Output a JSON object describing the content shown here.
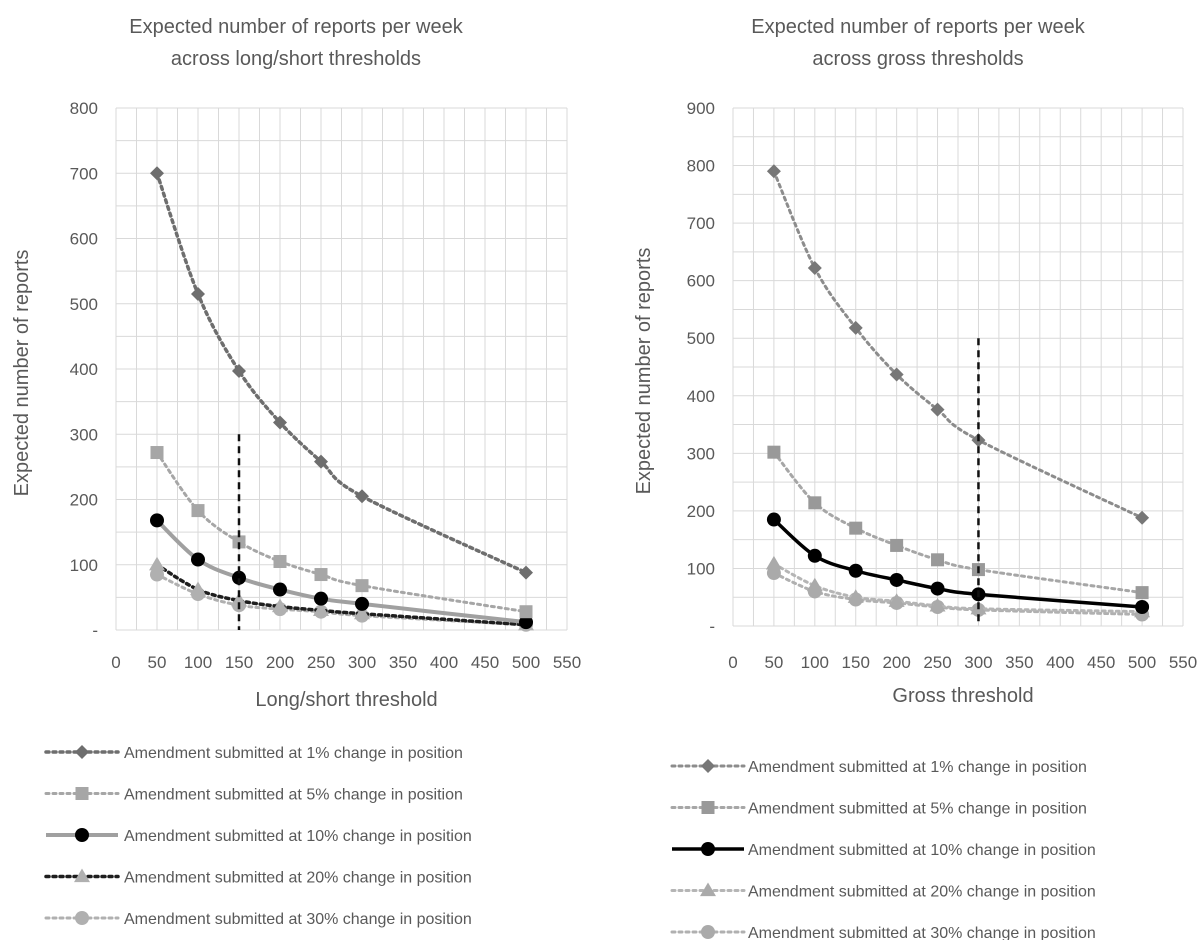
{
  "colors": {
    "s1_left": "#6e6e6e",
    "s1_right": "#8c8c8c",
    "s5": "#a6a6a6",
    "s10_left": "#a0a0a0",
    "s10_right": "#000000",
    "s20_left": "#1e1e1e",
    "s20_right": "#b5b5b5",
    "s30": "#b0b0b0",
    "grid": "#d9d9d9",
    "threshold": "#111111"
  },
  "chart_data": [
    {
      "type": "line",
      "title": [
        "Expected number of reports per week",
        "across long/short thresholds"
      ],
      "xlabel": "Long/short threshold",
      "ylabel": "Expected number of reports",
      "xlim": [
        0,
        550
      ],
      "ylim": [
        0,
        800
      ],
      "x_ticks": [
        "0",
        "50",
        "100",
        "150",
        "200",
        "250",
        "300",
        "350",
        "400",
        "450",
        "500",
        "550"
      ],
      "y_ticks": [
        "-",
        "100",
        "200",
        "300",
        "400",
        "500",
        "600",
        "700",
        "800"
      ],
      "grid": true,
      "threshold_line": {
        "x": 150,
        "y_top": 300
      },
      "x": [
        50,
        100,
        150,
        200,
        250,
        300,
        500
      ],
      "legend_position": "bottom",
      "series": [
        {
          "name": "Amendment submitted at 1% change in position",
          "marker": "diamond",
          "line": "dotted",
          "values": [
            700,
            515,
            397,
            318,
            258,
            205,
            88
          ]
        },
        {
          "name": "Amendment submitted at 5% change in position",
          "marker": "square",
          "line": "dotted-light",
          "values": [
            272,
            183,
            135,
            105,
            85,
            68,
            28
          ]
        },
        {
          "name": "Amendment submitted at 10% change in position",
          "marker": "circle",
          "line": "solid-thick",
          "values": [
            168,
            108,
            80,
            62,
            48,
            40,
            12
          ]
        },
        {
          "name": "Amendment submitted at 20% change in position",
          "marker": "triangle",
          "line": "dotted-heavy",
          "values": [
            100,
            62,
            45,
            36,
            30,
            25,
            8
          ]
        },
        {
          "name": "Amendment submitted at 30% change in position",
          "marker": "circle",
          "line": "dotted-light",
          "values": [
            85,
            55,
            38,
            32,
            28,
            22,
            8
          ]
        }
      ]
    },
    {
      "type": "line",
      "title": [
        "Expected number of reports per week",
        "across gross thresholds"
      ],
      "xlabel": "Gross threshold",
      "ylabel": "Expected number of reports",
      "xlim": [
        0,
        550
      ],
      "ylim": [
        0,
        900
      ],
      "x_ticks": [
        "0",
        "50",
        "100",
        "150",
        "200",
        "250",
        "300",
        "350",
        "400",
        "450",
        "500",
        "550"
      ],
      "y_ticks": [
        "-",
        "100",
        "200",
        "300",
        "400",
        "500",
        "600",
        "700",
        "800",
        "900"
      ],
      "grid": true,
      "threshold_line": {
        "x": 300,
        "y_top": 500
      },
      "x": [
        50,
        100,
        150,
        200,
        250,
        300,
        500
      ],
      "legend_position": "bottom",
      "series": [
        {
          "name": "Amendment submitted at 1% change in position",
          "marker": "diamond",
          "line": "dotted-light",
          "values": [
            790,
            622,
            518,
            437,
            376,
            323,
            188
          ]
        },
        {
          "name": "Amendment submitted at 5% change in position",
          "marker": "square",
          "line": "dotted-light",
          "values": [
            302,
            214,
            170,
            140,
            115,
            98,
            58
          ]
        },
        {
          "name": "Amendment submitted at 10% change in position",
          "marker": "circle",
          "line": "solid-thick",
          "values": [
            185,
            122,
            96,
            80,
            65,
            55,
            33
          ]
        },
        {
          "name": "Amendment submitted at 20% change in position",
          "marker": "triangle",
          "line": "dotted-light",
          "values": [
            108,
            70,
            50,
            43,
            35,
            30,
            25
          ]
        },
        {
          "name": "Amendment submitted at 30% change in position",
          "marker": "circle",
          "line": "dotted-light",
          "values": [
            92,
            60,
            46,
            40,
            33,
            28,
            20
          ]
        }
      ]
    }
  ]
}
